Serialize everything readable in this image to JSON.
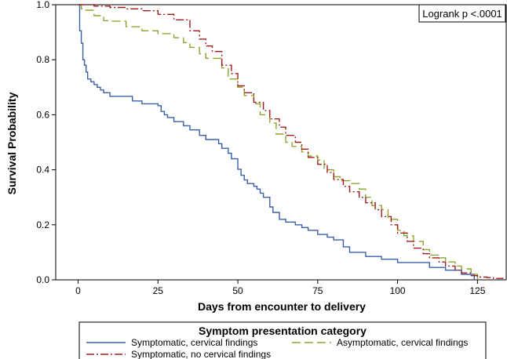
{
  "chart_data": {
    "type": "line",
    "subtype": "step",
    "xlabel": "Days from encounter to delivery",
    "ylabel": "Survival Probability",
    "xlim": [
      -7,
      134
    ],
    "ylim": [
      0,
      1
    ],
    "xticks": [
      0,
      25,
      50,
      75,
      100,
      125
    ],
    "yticks": [
      0.0,
      0.2,
      0.4,
      0.6,
      0.8,
      1.0
    ],
    "xtick_labels": [
      "0",
      "25",
      "50",
      "75",
      "100",
      "125"
    ],
    "ytick_labels": [
      "0.0",
      "0.2",
      "0.4",
      "0.6",
      "0.8",
      "1.0"
    ],
    "grid": false,
    "annotation": "Logrank p <.0001",
    "legend_title": "Symptom presentation category",
    "legend_position": "bottom",
    "series": [
      {
        "name": "Symptomatic, cervical findings",
        "color": "#3a5fa8",
        "dash": "solid",
        "x": [
          0,
          0.5,
          1,
          1.5,
          2,
          2.5,
          3,
          4,
          5,
          6,
          7,
          8,
          10,
          17,
          20,
          25,
          26,
          27,
          28,
          30,
          33,
          35,
          38,
          40,
          44,
          45,
          47,
          48,
          50,
          51,
          52,
          53,
          55,
          56,
          57,
          58,
          60,
          61,
          63,
          65,
          68,
          70,
          72,
          75,
          78,
          80,
          83,
          85,
          90,
          95,
          100,
          105,
          110,
          115,
          120,
          124
        ],
        "y": [
          1.0,
          0.905,
          0.86,
          0.8,
          0.78,
          0.755,
          0.73,
          0.72,
          0.71,
          0.7,
          0.69,
          0.68,
          0.667,
          0.65,
          0.64,
          0.633,
          0.612,
          0.6,
          0.59,
          0.575,
          0.56,
          0.545,
          0.525,
          0.51,
          0.495,
          0.478,
          0.46,
          0.44,
          0.402,
          0.38,
          0.363,
          0.35,
          0.34,
          0.33,
          0.315,
          0.3,
          0.265,
          0.245,
          0.22,
          0.21,
          0.2,
          0.19,
          0.18,
          0.165,
          0.155,
          0.145,
          0.12,
          0.1,
          0.085,
          0.075,
          0.063,
          0.063,
          0.045,
          0.035,
          0.02,
          0.0
        ]
      },
      {
        "name": "Asymptomatic, cervical findings",
        "color": "#8aa62d",
        "dash": "long-dash",
        "x": [
          0,
          1,
          2,
          5,
          8,
          10,
          15,
          20,
          25,
          30,
          33,
          35,
          38,
          40,
          45,
          47,
          50,
          52,
          55,
          57,
          60,
          62,
          65,
          67,
          70,
          72,
          75,
          77,
          80,
          82,
          85,
          88,
          90,
          92,
          95,
          97,
          100,
          102,
          105,
          108,
          110,
          113,
          115,
          118,
          120,
          123,
          125
        ],
        "y": [
          1.0,
          0.985,
          0.98,
          0.96,
          0.942,
          0.94,
          0.92,
          0.905,
          0.895,
          0.88,
          0.862,
          0.845,
          0.822,
          0.805,
          0.77,
          0.73,
          0.7,
          0.67,
          0.64,
          0.6,
          0.57,
          0.53,
          0.5,
          0.485,
          0.465,
          0.45,
          0.435,
          0.4,
          0.375,
          0.36,
          0.35,
          0.33,
          0.3,
          0.27,
          0.255,
          0.22,
          0.18,
          0.16,
          0.14,
          0.11,
          0.09,
          0.08,
          0.065,
          0.05,
          0.04,
          0.02,
          0.0
        ]
      },
      {
        "name": "Symptomatic, no cervical findings",
        "color": "#a01c1c",
        "dash": "dash-dot",
        "x": [
          0,
          5,
          10,
          15,
          20,
          25,
          30,
          35,
          38,
          40,
          42,
          45,
          48,
          50,
          52,
          55,
          58,
          60,
          63,
          65,
          68,
          70,
          72,
          75,
          78,
          80,
          83,
          85,
          88,
          90,
          93,
          95,
          98,
          100,
          103,
          105,
          108,
          110,
          113,
          115,
          118,
          120,
          123,
          125,
          128,
          130,
          133
        ],
        "y": [
          1.0,
          0.995,
          0.99,
          0.985,
          0.978,
          0.965,
          0.945,
          0.905,
          0.875,
          0.85,
          0.83,
          0.78,
          0.75,
          0.705,
          0.68,
          0.645,
          0.615,
          0.585,
          0.555,
          0.525,
          0.5,
          0.475,
          0.445,
          0.42,
          0.39,
          0.365,
          0.34,
          0.32,
          0.3,
          0.28,
          0.255,
          0.23,
          0.2,
          0.17,
          0.14,
          0.115,
          0.095,
          0.08,
          0.065,
          0.05,
          0.035,
          0.025,
          0.015,
          0.01,
          0.008,
          0.005,
          0.003
        ]
      }
    ]
  }
}
